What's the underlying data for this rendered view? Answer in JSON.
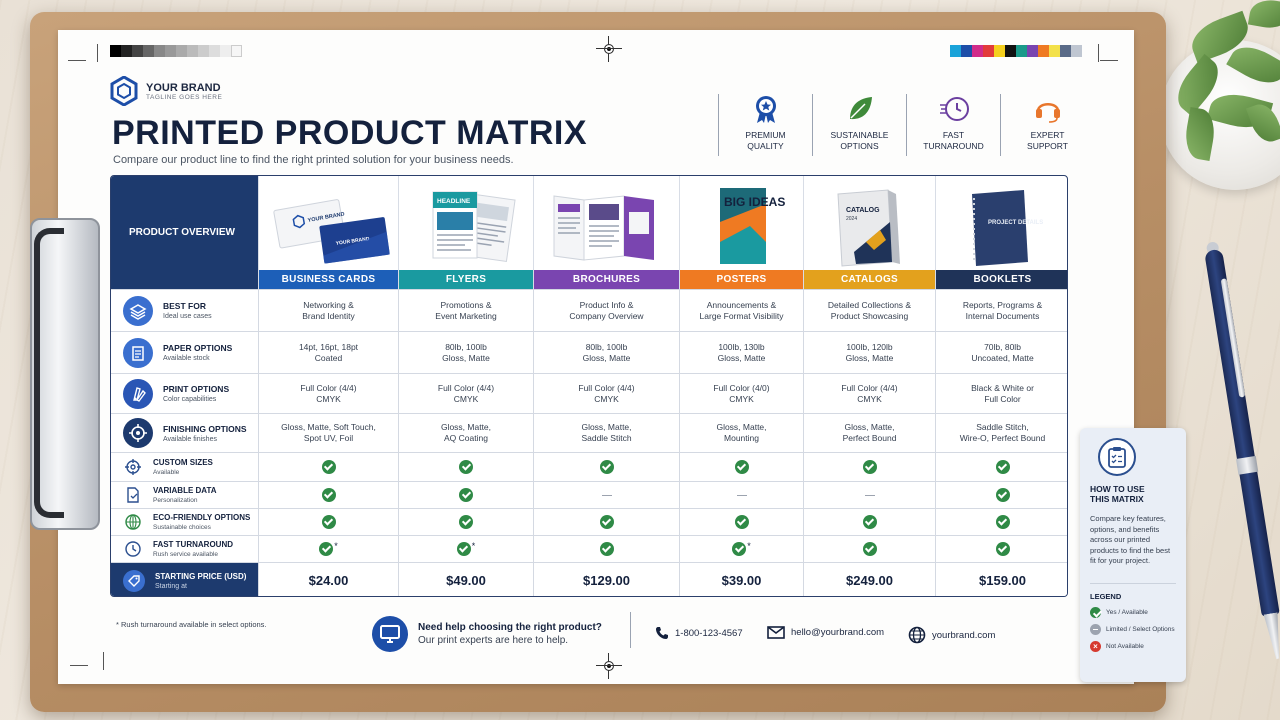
{
  "brand": {
    "name": "YOUR BRAND",
    "tagline": "TAGLINE GOES HERE"
  },
  "title": "PRINTED PRODUCT MATRIX",
  "subtitle": "Compare our product line to find the right printed solution for your business needs.",
  "features": [
    {
      "label": "PREMIUM\nQUALITY",
      "icon": "award-ribbon-icon",
      "color": "#1d4ea8"
    },
    {
      "label": "SUSTAINABLE\nOPTIONS",
      "icon": "leaf-icon",
      "color": "#3f8a3a"
    },
    {
      "label": "FAST\nTURNAROUND",
      "icon": "clock-speed-icon",
      "color": "#6b3fa0"
    },
    {
      "label": "EXPERT\nSUPPORT",
      "icon": "headset-icon",
      "color": "#e8762c"
    }
  ],
  "matrix": {
    "overview_label": "PRODUCT OVERVIEW",
    "products": [
      {
        "name": "BUSINESS CARDS",
        "color": "#1d5fb8",
        "image": "business-cards-image"
      },
      {
        "name": "FLYERS",
        "color": "#1a9aa0",
        "image": "flyers-image"
      },
      {
        "name": "BROCHURES",
        "color": "#7a45b0",
        "image": "brochures-image"
      },
      {
        "name": "POSTERS",
        "color": "#ef7a22",
        "image": "posters-image"
      },
      {
        "name": "CATALOGS",
        "color": "#e3a11d",
        "image": "catalogs-image"
      },
      {
        "name": "BOOKLETS",
        "color": "#1f3358",
        "image": "booklets-image"
      }
    ],
    "poster_text": {
      "headline": "BIG IDEAS"
    },
    "catalog_text": {
      "headline": "CATALOG",
      "year": "2024"
    },
    "booklet_text": {
      "headline": "PROJECT DETAILS"
    },
    "flyer_text": {
      "headline": "HEADLINE"
    },
    "card_text": {
      "brand": "YOUR BRAND"
    },
    "rows": [
      {
        "title": "BEST FOR",
        "sub": "Ideal use cases",
        "icon": "stack-layers-icon",
        "type": "text",
        "values": [
          [
            "Networking &",
            "Brand Identity"
          ],
          [
            "Promotions &",
            "Event Marketing"
          ],
          [
            "Product Info &",
            "Company Overview"
          ],
          [
            "Announcements &",
            "Large Format Visibility"
          ],
          [
            "Detailed Collections &",
            "Product Showcasing"
          ],
          [
            "Reports, Programs &",
            "Internal Documents"
          ]
        ]
      },
      {
        "title": "PAPER OPTIONS",
        "sub": "Available stock",
        "icon": "paper-stack-icon",
        "type": "text",
        "values": [
          [
            "14pt, 16pt, 18pt",
            "Coated"
          ],
          [
            "80lb, 100lb",
            "Gloss, Matte"
          ],
          [
            "80lb, 100lb",
            "Gloss, Matte"
          ],
          [
            "100lb, 130lb",
            "Gloss, Matte"
          ],
          [
            "100lb, 120lb",
            "Gloss, Matte"
          ],
          [
            "70lb, 80lb",
            "Uncoated, Matte"
          ]
        ]
      },
      {
        "title": "PRINT OPTIONS",
        "sub": "Color capabilities",
        "icon": "color-swatch-icon",
        "type": "text",
        "values": [
          [
            "Full Color (4/4)",
            "CMYK"
          ],
          [
            "Full Color (4/4)",
            "CMYK"
          ],
          [
            "Full Color (4/4)",
            "CMYK"
          ],
          [
            "Full Color (4/0)",
            "CMYK"
          ],
          [
            "Full Color (4/4)",
            "CMYK"
          ],
          [
            "Black & White or",
            "Full Color"
          ]
        ]
      },
      {
        "title": "FINISHING OPTIONS",
        "sub": "Available finishes",
        "icon": "target-icon",
        "type": "text",
        "values": [
          [
            "Gloss, Matte, Soft Touch,",
            "Spot UV, Foil"
          ],
          [
            "Gloss, Matte,",
            "AQ Coating"
          ],
          [
            "Gloss, Matte,",
            "Saddle Stitch"
          ],
          [
            "Gloss, Matte,",
            "Mounting"
          ],
          [
            "Gloss, Matte,",
            "Perfect Bound"
          ],
          [
            "Saddle Stitch,",
            "Wire-O, Perfect Bound"
          ]
        ]
      },
      {
        "title": "CUSTOM SIZES",
        "sub": "Available",
        "icon": "crosshair-icon",
        "type": "check",
        "values": [
          "yes",
          "yes",
          "yes",
          "yes",
          "yes",
          "yes"
        ]
      },
      {
        "title": "VARIABLE DATA",
        "sub": "Personalization",
        "icon": "document-icon",
        "type": "check",
        "values": [
          "yes",
          "yes",
          "no",
          "no",
          "no",
          "yes"
        ]
      },
      {
        "title": "ECO-FRIENDLY OPTIONS",
        "sub": "Sustainable choices",
        "icon": "eco-globe-icon",
        "type": "check",
        "values": [
          "yes",
          "yes",
          "yes",
          "yes",
          "yes",
          "yes"
        ]
      },
      {
        "title": "FAST TURNAROUND",
        "sub": "Rush service available",
        "icon": "clock-icon",
        "type": "check",
        "values": [
          "yes*",
          "yes*",
          "yes",
          "yes*",
          "yes",
          "yes"
        ]
      }
    ],
    "price_row": {
      "title": "STARTING PRICE (USD)",
      "sub": "Starting at",
      "icon": "price-tag-icon",
      "values": [
        "$24.00",
        "$49.00",
        "$129.00",
        "$39.00",
        "$249.00",
        "$159.00"
      ]
    }
  },
  "footer": {
    "footnote": "* Rush turnaround available in select options.",
    "help_title": "Need help choosing the right product?",
    "help_sub": "Our print experts are here to help.",
    "phone": "1-800-123-4567",
    "email": "hello@yourbrand.com",
    "web": "yourbrand.com"
  },
  "how_card": {
    "title": "HOW TO USE\nTHIS MATRIX",
    "text": "Compare key features, options, and benefits across our printed products to find the best fit for your project.",
    "legend_title": "LEGEND",
    "legend": [
      {
        "label": "Yes / Available",
        "color": "#2f8a46"
      },
      {
        "label": "Limited / Select Options",
        "color": "#9ca3af"
      },
      {
        "label": "Not Available",
        "color": "#d63a2f"
      }
    ]
  },
  "colors": {
    "navy": "#1d3a6e",
    "check_green": "#2f8a46"
  }
}
